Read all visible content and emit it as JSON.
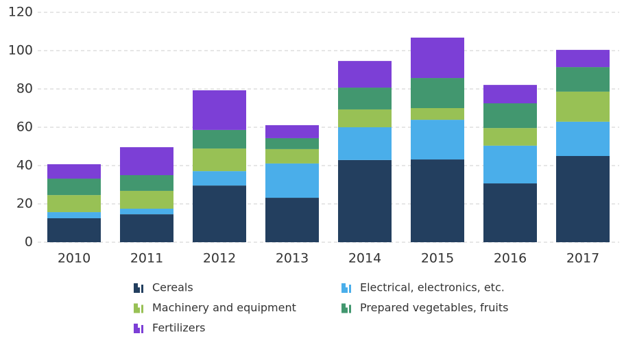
{
  "chart_data": {
    "type": "stacked_bar",
    "categories": [
      "2010",
      "2011",
      "2012",
      "2013",
      "2014",
      "2015",
      "2016",
      "2017"
    ],
    "series": [
      {
        "name": "Cereals",
        "color": "#233f5f",
        "values": [
          12.5,
          14.6,
          29.6,
          23.2,
          42.9,
          43.2,
          30.7,
          45
        ]
      },
      {
        "name": "Electrical, electronics, etc.",
        "color": "#4aaeea",
        "values": [
          3.2,
          2.9,
          7.5,
          17.9,
          17.1,
          20.7,
          19.7,
          17.9
        ]
      },
      {
        "name": "Machinery and equipment",
        "color": "#98c155",
        "values": [
          8.9,
          9.3,
          11.8,
          7.5,
          9.3,
          6.1,
          9.2,
          15.7
        ]
      },
      {
        "name": "Prepared vegetables, fruits",
        "color": "#42976f",
        "values": [
          8.6,
          8.2,
          9.7,
          5.7,
          11.4,
          15.7,
          12.9,
          12.8
        ]
      },
      {
        "name": "Fertilizers",
        "color": "#7c3fd6",
        "values": [
          7.5,
          14.6,
          20.7,
          6.8,
          13.9,
          21.1,
          9.6,
          9.0
        ]
      }
    ],
    "ylim": [
      0,
      120
    ],
    "yticks": [
      0,
      20,
      40,
      60,
      80,
      100,
      120
    ],
    "grid": true,
    "legend": "bottom"
  }
}
